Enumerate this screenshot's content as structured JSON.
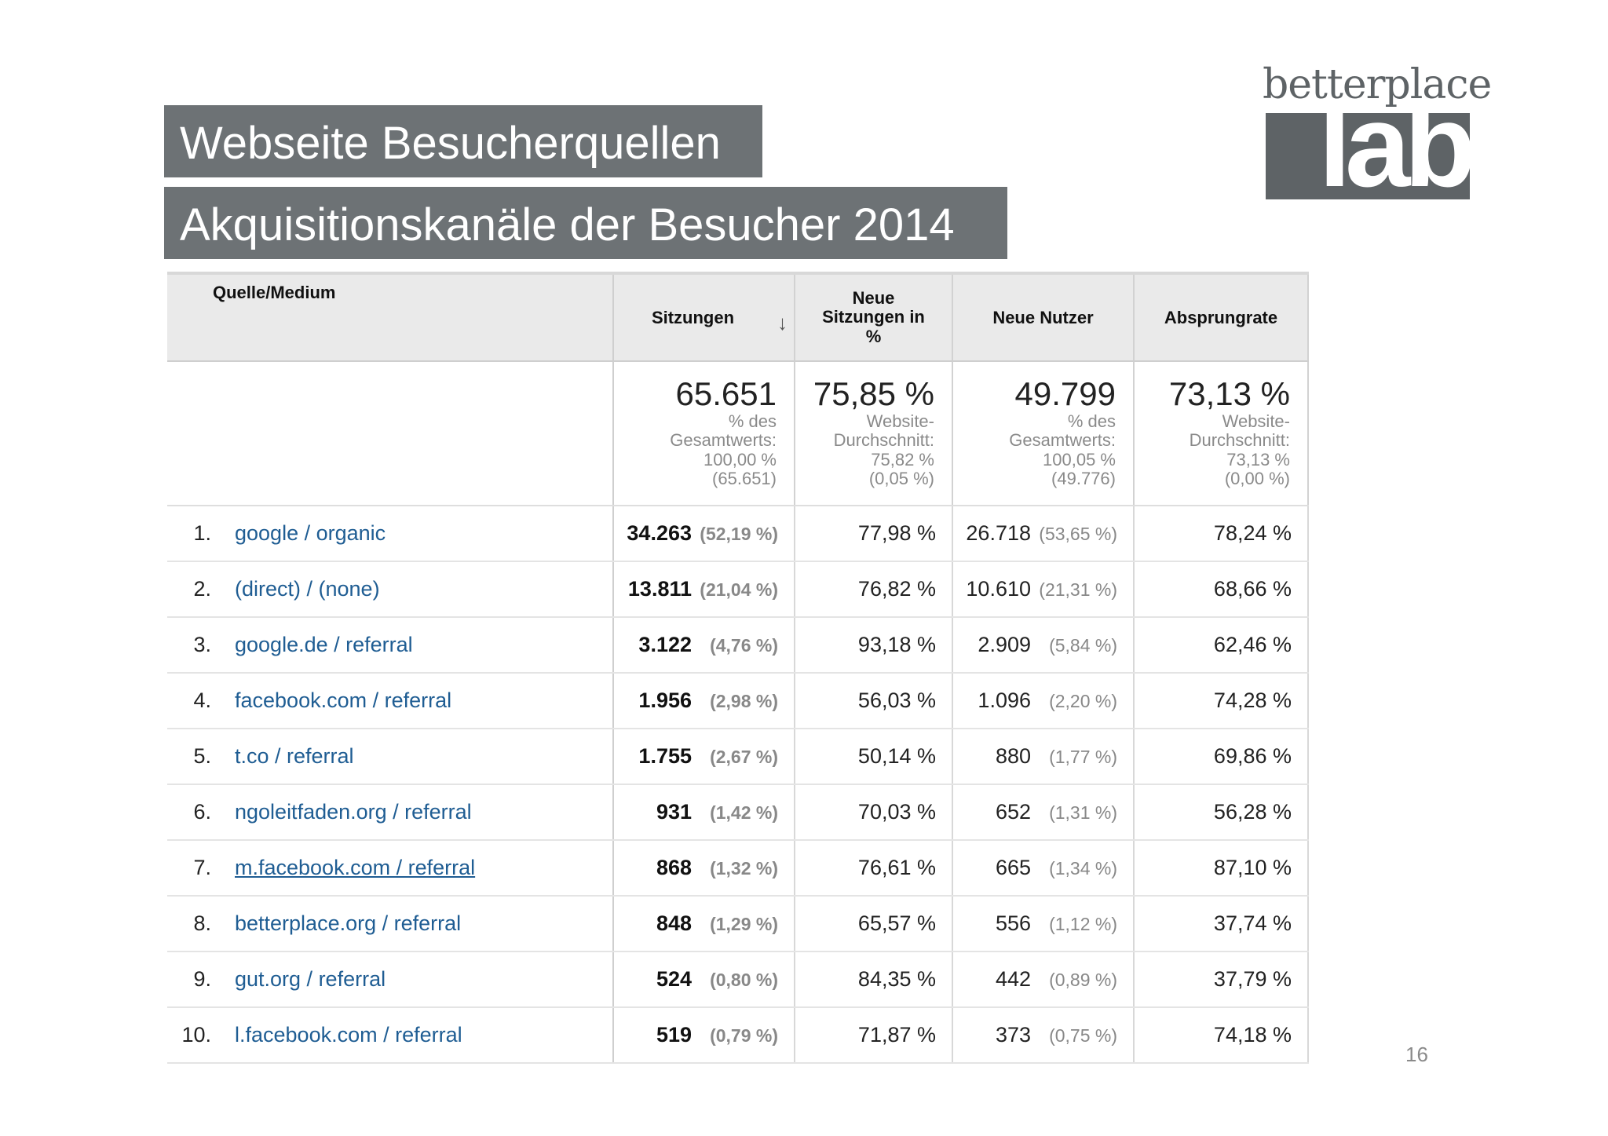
{
  "slide": {
    "title": "Webseite Besucherquellen",
    "subtitle": "Akquisitionskanäle der Besucher 2014",
    "page_number": "16"
  },
  "logo": {
    "line1": "betterplace",
    "line2": "lab"
  },
  "table": {
    "headers": {
      "source": "Quelle/Medium",
      "sessions": "Sitzungen",
      "new_sessions": "Neue Sitzungen in %",
      "new_users": "Neue Nutzer",
      "bounce": "Absprungrate"
    },
    "summary": {
      "sessions": {
        "value": "65.651",
        "l1": "% des",
        "l2": "Gesamtwerts:",
        "l3": "100,00 %",
        "l4": "(65.651)"
      },
      "new_sessions": {
        "value": "75,85 %",
        "l1": "Website-",
        "l2": "Durchschnitt:",
        "l3": "75,82 %",
        "l4": "(0,05 %)"
      },
      "new_users": {
        "value": "49.799",
        "l1": "% des",
        "l2": "Gesamtwerts:",
        "l3": "100,05 %",
        "l4": "(49.776)"
      },
      "bounce": {
        "value": "73,13 %",
        "l1": "Website-",
        "l2": "Durchschnitt:",
        "l3": "73,13 %",
        "l4": "(0,00 %)"
      }
    },
    "rows": [
      {
        "rank": "1.",
        "source": "google / organic",
        "sessions": "34.263",
        "sessions_pct": "(52,19 %)",
        "new_sessions": "77,98 %",
        "new_users": "26.718",
        "new_users_pct": "(53,65 %)",
        "bounce": "78,24 %"
      },
      {
        "rank": "2.",
        "source": "(direct) / (none)",
        "sessions": "13.811",
        "sessions_pct": "(21,04 %)",
        "new_sessions": "76,82 %",
        "new_users": "10.610",
        "new_users_pct": "(21,31 %)",
        "bounce": "68,66 %"
      },
      {
        "rank": "3.",
        "source": "google.de / referral",
        "sessions": "3.122",
        "sessions_pct": "(4,76 %)",
        "new_sessions": "93,18 %",
        "new_users": "2.909",
        "new_users_pct": "(5,84 %)",
        "bounce": "62,46 %"
      },
      {
        "rank": "4.",
        "source": "facebook.com / referral",
        "sessions": "1.956",
        "sessions_pct": "(2,98 %)",
        "new_sessions": "56,03 %",
        "new_users": "1.096",
        "new_users_pct": "(2,20 %)",
        "bounce": "74,28 %"
      },
      {
        "rank": "5.",
        "source": "t.co / referral",
        "sessions": "1.755",
        "sessions_pct": "(2,67 %)",
        "new_sessions": "50,14 %",
        "new_users": "880",
        "new_users_pct": "(1,77 %)",
        "bounce": "69,86 %"
      },
      {
        "rank": "6.",
        "source": "ngoleitfaden.org / referral",
        "sessions": "931",
        "sessions_pct": "(1,42 %)",
        "new_sessions": "70,03 %",
        "new_users": "652",
        "new_users_pct": "(1,31 %)",
        "bounce": "56,28 %"
      },
      {
        "rank": "7.",
        "source": "m.facebook.com / referral",
        "sessions": "868",
        "sessions_pct": "(1,32 %)",
        "new_sessions": "76,61 %",
        "new_users": "665",
        "new_users_pct": "(1,34 %)",
        "bounce": "87,10 %"
      },
      {
        "rank": "8.",
        "source": "betterplace.org / referral",
        "sessions": "848",
        "sessions_pct": "(1,29 %)",
        "new_sessions": "65,57 %",
        "new_users": "556",
        "new_users_pct": "(1,12 %)",
        "bounce": "37,74 %"
      },
      {
        "rank": "9.",
        "source": "gut.org / referral",
        "sessions": "524",
        "sessions_pct": "(0,80 %)",
        "new_sessions": "84,35 %",
        "new_users": "442",
        "new_users_pct": "(0,89 %)",
        "bounce": "37,79 %"
      },
      {
        "rank": "10.",
        "source": "l.facebook.com / referral",
        "sessions": "519",
        "sessions_pct": "(0,79 %)",
        "new_sessions": "71,87 %",
        "new_users": "373",
        "new_users_pct": "(0,75 %)",
        "bounce": "74,18 %"
      }
    ]
  },
  "colors": {
    "title_bg": "#6d7275",
    "link": "#1f5d93",
    "header_bg": "#eaeaea",
    "logo": "#5e6366"
  }
}
